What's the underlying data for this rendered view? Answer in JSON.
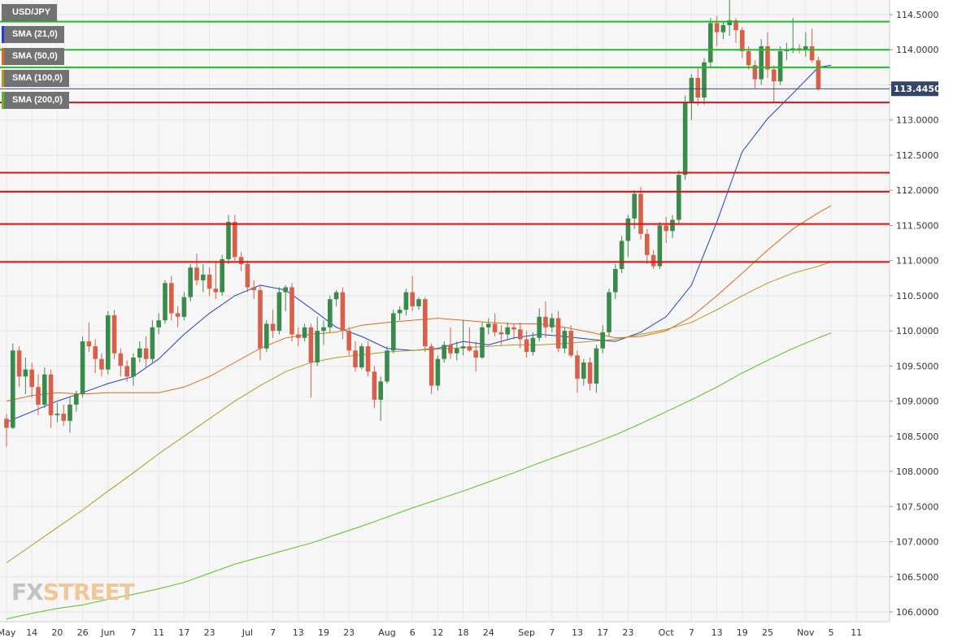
{
  "legend": [
    {
      "label": "USD/JPY",
      "color": "#727272"
    },
    {
      "label": "SMA (21,0)",
      "color": "#1f3fd1"
    },
    {
      "label": "SMA (50,0)",
      "color": "#e06a1a"
    },
    {
      "label": "SMA (100,0)",
      "color": "#b39a17"
    },
    {
      "label": "SMA (200,0)",
      "color": "#55c41a"
    }
  ],
  "watermark": {
    "part1": "FX",
    "part2": "STREET"
  },
  "chart_data": {
    "type": "candlestick",
    "symbol": "USD/JPY",
    "ylim": [
      105.9,
      114.7
    ],
    "y_ticks": [
      "114.5000",
      "114.0000",
      "113.5000",
      "113.0000",
      "112.5000",
      "112.0000",
      "111.5000",
      "111.0000",
      "110.5000",
      "110.0000",
      "109.5000",
      "109.0000",
      "108.5000",
      "108.0000",
      "107.5000",
      "107.0000",
      "106.5000",
      "106.0000"
    ],
    "x_ticks": [
      {
        "label": "May",
        "i": 0
      },
      {
        "label": "14",
        "i": 4
      },
      {
        "label": "20",
        "i": 8
      },
      {
        "label": "26",
        "i": 12
      },
      {
        "label": "Jun",
        "i": 16
      },
      {
        "label": "7",
        "i": 20
      },
      {
        "label": "11",
        "i": 24
      },
      {
        "label": "17",
        "i": 28
      },
      {
        "label": "23",
        "i": 32
      },
      {
        "label": "Jul",
        "i": 38
      },
      {
        "label": "7",
        "i": 42
      },
      {
        "label": "13",
        "i": 46
      },
      {
        "label": "19",
        "i": 50
      },
      {
        "label": "23",
        "i": 54
      },
      {
        "label": "Aug",
        "i": 60
      },
      {
        "label": "6",
        "i": 64
      },
      {
        "label": "12",
        "i": 68
      },
      {
        "label": "18",
        "i": 72
      },
      {
        "label": "24",
        "i": 76
      },
      {
        "label": "Sep",
        "i": 82
      },
      {
        "label": "7",
        "i": 86
      },
      {
        "label": "13",
        "i": 90
      },
      {
        "label": "17",
        "i": 94
      },
      {
        "label": "23",
        "i": 98
      },
      {
        "label": "Oct",
        "i": 104
      },
      {
        "label": "7",
        "i": 108
      },
      {
        "label": "13",
        "i": 112
      },
      {
        "label": "19",
        "i": 116
      },
      {
        "label": "25",
        "i": 120
      },
      {
        "label": "Nov",
        "i": 126
      },
      {
        "label": "5",
        "i": 130
      },
      {
        "label": "11",
        "i": 134
      }
    ],
    "current_price": "113.4450",
    "support_resistance": [
      {
        "value": 114.4,
        "color": "#22bb22"
      },
      {
        "value": 114.0,
        "color": "#22bb22"
      },
      {
        "value": 113.75,
        "color": "#22bb22"
      },
      {
        "value": 113.25,
        "color": "#dd1111"
      },
      {
        "value": 112.25,
        "color": "#dd1111"
      },
      {
        "value": 111.98,
        "color": "#dd1111"
      },
      {
        "value": 111.52,
        "color": "#dd1111"
      },
      {
        "value": 110.98,
        "color": "#dd1111"
      }
    ],
    "candles": [
      [
        108.75,
        108.82,
        108.35,
        108.62
      ],
      [
        108.62,
        109.82,
        108.6,
        109.72
      ],
      [
        109.72,
        109.78,
        109.2,
        109.35
      ],
      [
        109.35,
        109.62,
        109.1,
        109.45
      ],
      [
        109.45,
        109.55,
        109.05,
        109.2
      ],
      [
        109.2,
        109.38,
        108.8,
        108.95
      ],
      [
        108.95,
        109.48,
        108.9,
        109.38
      ],
      [
        109.38,
        109.45,
        108.62,
        108.8
      ],
      [
        108.8,
        108.98,
        108.7,
        108.82
      ],
      [
        108.82,
        108.95,
        108.65,
        108.72
      ],
      [
        108.72,
        109.05,
        108.55,
        108.95
      ],
      [
        108.95,
        109.15,
        108.85,
        109.1
      ],
      [
        109.1,
        109.92,
        109.05,
        109.85
      ],
      [
        109.85,
        110.12,
        109.7,
        109.78
      ],
      [
        109.78,
        109.88,
        109.4,
        109.6
      ],
      [
        109.6,
        109.68,
        109.35,
        109.45
      ],
      [
        109.45,
        110.28,
        109.38,
        110.22
      ],
      [
        110.22,
        110.3,
        109.6,
        109.68
      ],
      [
        109.68,
        109.75,
        109.35,
        109.5
      ],
      [
        109.5,
        109.58,
        109.28,
        109.35
      ],
      [
        109.35,
        109.68,
        109.22,
        109.62
      ],
      [
        109.62,
        109.85,
        109.55,
        109.75
      ],
      [
        109.75,
        109.92,
        109.48,
        109.6
      ],
      [
        109.6,
        110.15,
        109.55,
        110.05
      ],
      [
        110.05,
        110.25,
        109.95,
        110.15
      ],
      [
        110.15,
        110.72,
        110.1,
        110.68
      ],
      [
        110.68,
        110.78,
        110.15,
        110.25
      ],
      [
        110.25,
        110.35,
        110.05,
        110.2
      ],
      [
        110.2,
        110.55,
        110.15,
        110.48
      ],
      [
        110.48,
        110.95,
        110.42,
        110.9
      ],
      [
        110.9,
        111.1,
        110.65,
        110.72
      ],
      [
        110.72,
        110.95,
        110.55,
        110.8
      ],
      [
        110.8,
        110.9,
        110.5,
        110.6
      ],
      [
        110.6,
        110.98,
        110.45,
        110.55
      ],
      [
        110.55,
        111.08,
        110.5,
        111.02
      ],
      [
        111.02,
        111.65,
        110.95,
        111.55
      ],
      [
        111.55,
        111.65,
        111.0,
        111.05
      ],
      [
        111.05,
        111.12,
        110.85,
        110.95
      ],
      [
        110.95,
        111.0,
        110.55,
        110.62
      ],
      [
        110.62,
        110.72,
        110.45,
        110.58
      ],
      [
        110.58,
        110.65,
        109.58,
        109.75
      ],
      [
        109.75,
        110.15,
        109.7,
        110.1
      ],
      [
        110.1,
        110.3,
        109.9,
        110.0
      ],
      [
        110.0,
        110.62,
        109.95,
        110.55
      ],
      [
        110.55,
        110.65,
        110.28,
        110.62
      ],
      [
        110.62,
        110.68,
        109.85,
        109.95
      ],
      [
        109.95,
        110.05,
        109.78,
        109.9
      ],
      [
        109.9,
        110.1,
        109.85,
        110.05
      ],
      [
        110.05,
        110.1,
        109.05,
        109.55
      ],
      [
        109.55,
        110.2,
        109.5,
        110.0
      ],
      [
        110.0,
        110.15,
        109.8,
        110.05
      ],
      [
        110.05,
        110.5,
        109.98,
        110.45
      ],
      [
        110.45,
        110.58,
        110.35,
        110.55
      ],
      [
        110.55,
        110.62,
        109.88,
        110.0
      ],
      [
        110.0,
        110.05,
        109.65,
        109.72
      ],
      [
        109.72,
        109.85,
        109.42,
        109.48
      ],
      [
        109.48,
        109.82,
        109.45,
        109.78
      ],
      [
        109.78,
        109.85,
        109.35,
        109.42
      ],
      [
        109.42,
        109.5,
        108.9,
        109.02
      ],
      [
        109.02,
        109.35,
        108.72,
        109.28
      ],
      [
        109.28,
        109.78,
        109.25,
        109.72
      ],
      [
        109.72,
        110.3,
        109.68,
        110.25
      ],
      [
        110.25,
        110.35,
        110.15,
        110.3
      ],
      [
        110.3,
        110.6,
        110.22,
        110.55
      ],
      [
        110.55,
        110.78,
        110.28,
        110.35
      ],
      [
        110.35,
        110.48,
        110.3,
        110.45
      ],
      [
        110.45,
        110.48,
        109.7,
        109.78
      ],
      [
        109.78,
        109.82,
        109.1,
        109.22
      ],
      [
        109.22,
        109.65,
        109.15,
        109.6
      ],
      [
        109.6,
        109.85,
        109.55,
        109.8
      ],
      [
        109.8,
        110.05,
        109.6,
        109.68
      ],
      [
        109.68,
        109.85,
        109.58,
        109.75
      ],
      [
        109.75,
        110.15,
        109.65,
        109.78
      ],
      [
        109.78,
        110.05,
        109.7,
        109.72
      ],
      [
        109.72,
        109.85,
        109.42,
        109.62
      ],
      [
        109.62,
        110.12,
        109.6,
        110.05
      ],
      [
        110.05,
        110.18,
        109.95,
        110.1
      ],
      [
        110.1,
        110.25,
        109.92,
        109.98
      ],
      [
        109.98,
        110.08,
        109.8,
        109.95
      ],
      [
        109.95,
        110.12,
        109.88,
        110.05
      ],
      [
        110.05,
        110.1,
        109.88,
        110.02
      ],
      [
        110.02,
        110.12,
        109.75,
        109.88
      ],
      [
        109.88,
        110.0,
        109.62,
        109.7
      ],
      [
        109.7,
        109.98,
        109.65,
        109.9
      ],
      [
        109.9,
        110.32,
        109.85,
        110.2
      ],
      [
        110.2,
        110.42,
        109.9,
        110.05
      ],
      [
        110.05,
        110.25,
        109.98,
        110.18
      ],
      [
        110.18,
        110.28,
        109.7,
        109.75
      ],
      [
        109.75,
        110.05,
        109.68,
        110.0
      ],
      [
        110.0,
        110.08,
        109.62,
        109.65
      ],
      [
        109.65,
        109.72,
        109.12,
        109.32
      ],
      [
        109.32,
        109.6,
        109.22,
        109.55
      ],
      [
        109.55,
        109.62,
        109.15,
        109.25
      ],
      [
        109.25,
        109.8,
        109.12,
        109.75
      ],
      [
        109.75,
        110.08,
        109.68,
        109.98
      ],
      [
        109.98,
        110.6,
        109.92,
        110.55
      ],
      [
        110.55,
        110.95,
        110.45,
        110.88
      ],
      [
        110.88,
        111.35,
        110.82,
        111.28
      ],
      [
        111.28,
        111.65,
        111.05,
        111.6
      ],
      [
        111.6,
        112.0,
        111.45,
        111.95
      ],
      [
        111.95,
        112.05,
        111.3,
        111.38
      ],
      [
        111.38,
        111.45,
        110.95,
        111.08
      ],
      [
        111.08,
        111.15,
        110.88,
        110.92
      ],
      [
        110.92,
        111.55,
        110.88,
        111.5
      ],
      [
        111.5,
        111.62,
        111.25,
        111.42
      ],
      [
        111.42,
        111.65,
        111.32,
        111.58
      ],
      [
        111.58,
        112.28,
        111.52,
        112.22
      ],
      [
        112.22,
        113.35,
        112.15,
        113.25
      ],
      [
        113.25,
        113.65,
        113.0,
        113.6
      ],
      [
        113.6,
        113.75,
        113.2,
        113.32
      ],
      [
        113.32,
        113.88,
        113.22,
        113.82
      ],
      [
        113.82,
        114.45,
        113.75,
        114.38
      ],
      [
        114.38,
        114.48,
        114.05,
        114.25
      ],
      [
        114.25,
        114.4,
        114.15,
        114.35
      ],
      [
        114.35,
        114.72,
        114.2,
        114.42
      ],
      [
        114.42,
        114.45,
        114.1,
        114.28
      ],
      [
        114.28,
        114.32,
        113.88,
        113.98
      ],
      [
        113.98,
        114.05,
        113.72,
        113.78
      ],
      [
        113.78,
        113.85,
        113.45,
        113.58
      ],
      [
        113.58,
        114.15,
        113.5,
        114.05
      ],
      [
        114.05,
        114.25,
        113.6,
        113.72
      ],
      [
        113.72,
        113.78,
        113.25,
        113.55
      ],
      [
        113.55,
        114.05,
        113.5,
        113.98
      ],
      [
        113.98,
        114.1,
        113.85,
        114.0
      ],
      [
        114.0,
        114.45,
        113.95,
        114.02
      ],
      [
        114.02,
        114.08,
        113.95,
        114.0
      ],
      [
        114.0,
        114.25,
        113.9,
        114.05
      ],
      [
        114.05,
        114.3,
        113.82,
        113.85
      ],
      [
        113.85,
        113.9,
        113.42,
        113.45
      ]
    ],
    "sma": [
      {
        "name": "SMA (21,0)",
        "color": "#1f3fd1",
        "x": [
          0,
          4,
          8,
          12,
          16,
          20,
          24,
          28,
          32,
          36,
          40,
          44,
          48,
          52,
          56,
          60,
          64,
          68,
          72,
          76,
          80,
          84,
          88,
          92,
          96,
          100,
          104,
          108,
          112,
          116,
          120,
          124,
          128,
          130
        ],
        "y": [
          108.7,
          108.85,
          109.0,
          109.12,
          109.25,
          109.35,
          109.6,
          109.95,
          110.25,
          110.5,
          110.65,
          110.58,
          110.32,
          110.05,
          109.92,
          109.75,
          109.72,
          109.75,
          109.85,
          109.8,
          109.9,
          109.95,
          109.92,
          109.88,
          109.85,
          109.98,
          110.2,
          110.65,
          111.55,
          112.55,
          113.02,
          113.38,
          113.75,
          113.78
        ]
      },
      {
        "name": "SMA (50,0)",
        "color": "#e06a1a",
        "x": [
          0,
          4,
          8,
          12,
          16,
          20,
          24,
          28,
          32,
          36,
          40,
          44,
          48,
          52,
          56,
          60,
          64,
          68,
          72,
          76,
          80,
          84,
          88,
          92,
          96,
          100,
          104,
          108,
          112,
          116,
          120,
          124,
          128,
          130
        ],
        "y": [
          109.0,
          109.08,
          109.12,
          109.1,
          109.12,
          109.12,
          109.12,
          109.2,
          109.35,
          109.55,
          109.75,
          109.9,
          109.95,
          109.98,
          110.08,
          110.12,
          110.15,
          110.18,
          110.15,
          110.12,
          110.1,
          110.1,
          110.05,
          109.98,
          109.9,
          109.92,
          110.0,
          110.2,
          110.5,
          110.82,
          111.15,
          111.45,
          111.68,
          111.78
        ]
      },
      {
        "name": "SMA (100,0)",
        "color": "#b39a17",
        "x": [
          0,
          4,
          8,
          12,
          16,
          20,
          24,
          28,
          32,
          36,
          40,
          44,
          48,
          52,
          56,
          60,
          64,
          68,
          72,
          76,
          80,
          84,
          88,
          92,
          96,
          100,
          104,
          108,
          112,
          116,
          120,
          124,
          128,
          130
        ],
        "y": [
          106.7,
          106.95,
          107.2,
          107.45,
          107.72,
          107.98,
          108.25,
          108.5,
          108.75,
          109.0,
          109.22,
          109.42,
          109.55,
          109.62,
          109.66,
          109.7,
          109.72,
          109.74,
          109.76,
          109.78,
          109.8,
          109.8,
          109.82,
          109.85,
          109.88,
          109.95,
          110.02,
          110.12,
          110.3,
          110.5,
          110.68,
          110.82,
          110.92,
          110.98
        ]
      },
      {
        "name": "SMA (200,0)",
        "color": "#55c41a",
        "x": [
          0,
          4,
          8,
          12,
          16,
          20,
          24,
          28,
          32,
          36,
          40,
          44,
          48,
          52,
          56,
          60,
          64,
          68,
          72,
          76,
          80,
          84,
          88,
          92,
          96,
          100,
          104,
          108,
          112,
          116,
          120,
          124,
          128,
          130
        ],
        "y": [
          105.9,
          105.98,
          106.05,
          106.1,
          106.18,
          106.25,
          106.33,
          106.42,
          106.55,
          106.68,
          106.78,
          106.88,
          106.98,
          107.1,
          107.22,
          107.35,
          107.48,
          107.6,
          107.72,
          107.85,
          107.98,
          108.12,
          108.25,
          108.38,
          108.52,
          108.68,
          108.85,
          109.02,
          109.2,
          109.4,
          109.58,
          109.75,
          109.9,
          109.97
        ]
      }
    ]
  }
}
